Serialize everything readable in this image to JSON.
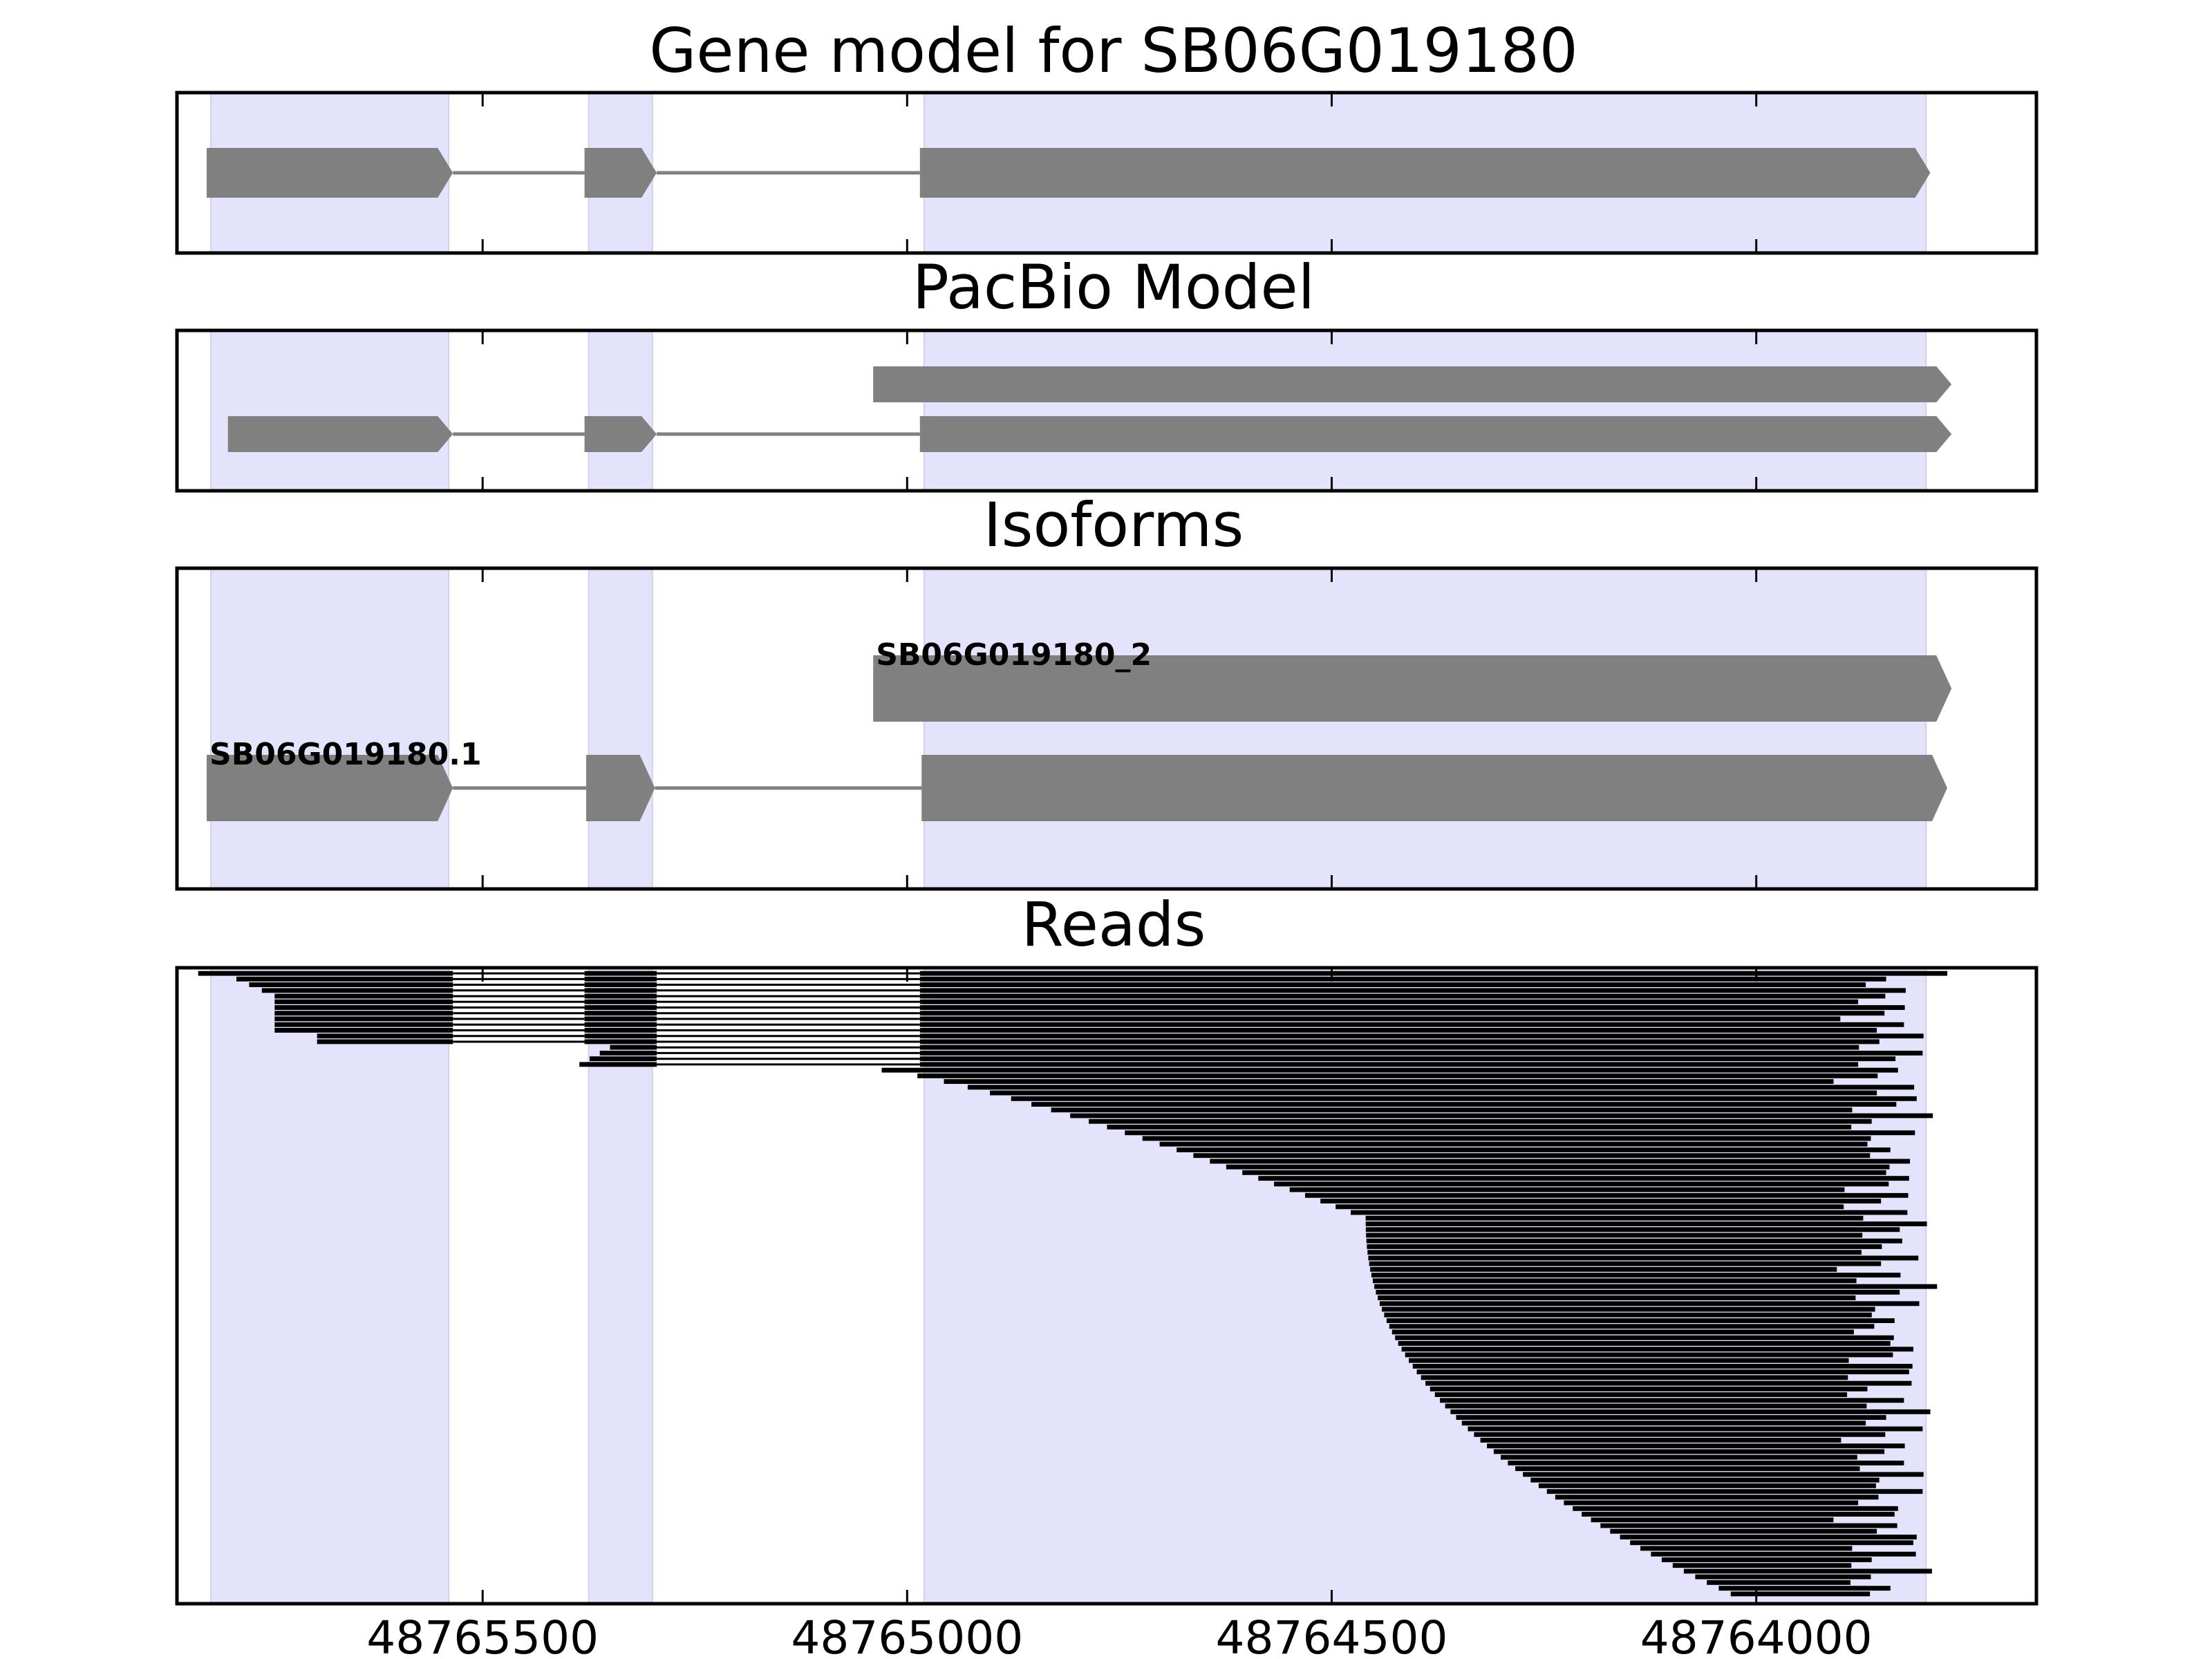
{
  "chart_data": {
    "type": "gene-track",
    "x_axis": {
      "reversed": true,
      "xlim": [
        48765860,
        48763670
      ],
      "ticks": [
        48765500,
        48765000,
        48764500,
        48764000
      ],
      "tick_labels": [
        "48765500",
        "48765000",
        "48764500",
        "48764000"
      ]
    },
    "exon_shading": {
      "color": "#e3e3fc",
      "regions": [
        [
          48765820,
          48765540
        ],
        [
          48765375,
          48765300
        ],
        [
          48764980,
          48763800
        ]
      ]
    },
    "colors": {
      "feature": "#808080",
      "read": "#000000",
      "intron": "#808080",
      "frame": "#000000"
    },
    "panels": [
      {
        "title": "Gene model for SB06G019180",
        "tracks": [
          {
            "label": "",
            "exons": [
              [
                48765825,
                48765535
              ],
              [
                48765380,
                48765295
              ],
              [
                48764985,
                48763795
              ]
            ]
          }
        ]
      },
      {
        "title": "PacBio Model",
        "tracks": [
          {
            "label": "",
            "exons": [
              [
                48765040,
                48763770
              ]
            ]
          },
          {
            "label": "",
            "exons": [
              [
                48765800,
                48765535
              ],
              [
                48765380,
                48765295
              ],
              [
                48764985,
                48763770
              ]
            ]
          }
        ]
      },
      {
        "title": "Isoforms",
        "tracks": [
          {
            "label": "SB06G019180_2",
            "exons": [
              [
                48765040,
                48763770
              ]
            ]
          },
          {
            "label": "SB06G019180.1",
            "exons": [
              [
                48765825,
                48765535
              ],
              [
                48765378,
                48765297
              ],
              [
                48764983,
                48763775
              ]
            ]
          }
        ]
      },
      {
        "title": "Reads",
        "read_count": 110
      }
    ]
  }
}
